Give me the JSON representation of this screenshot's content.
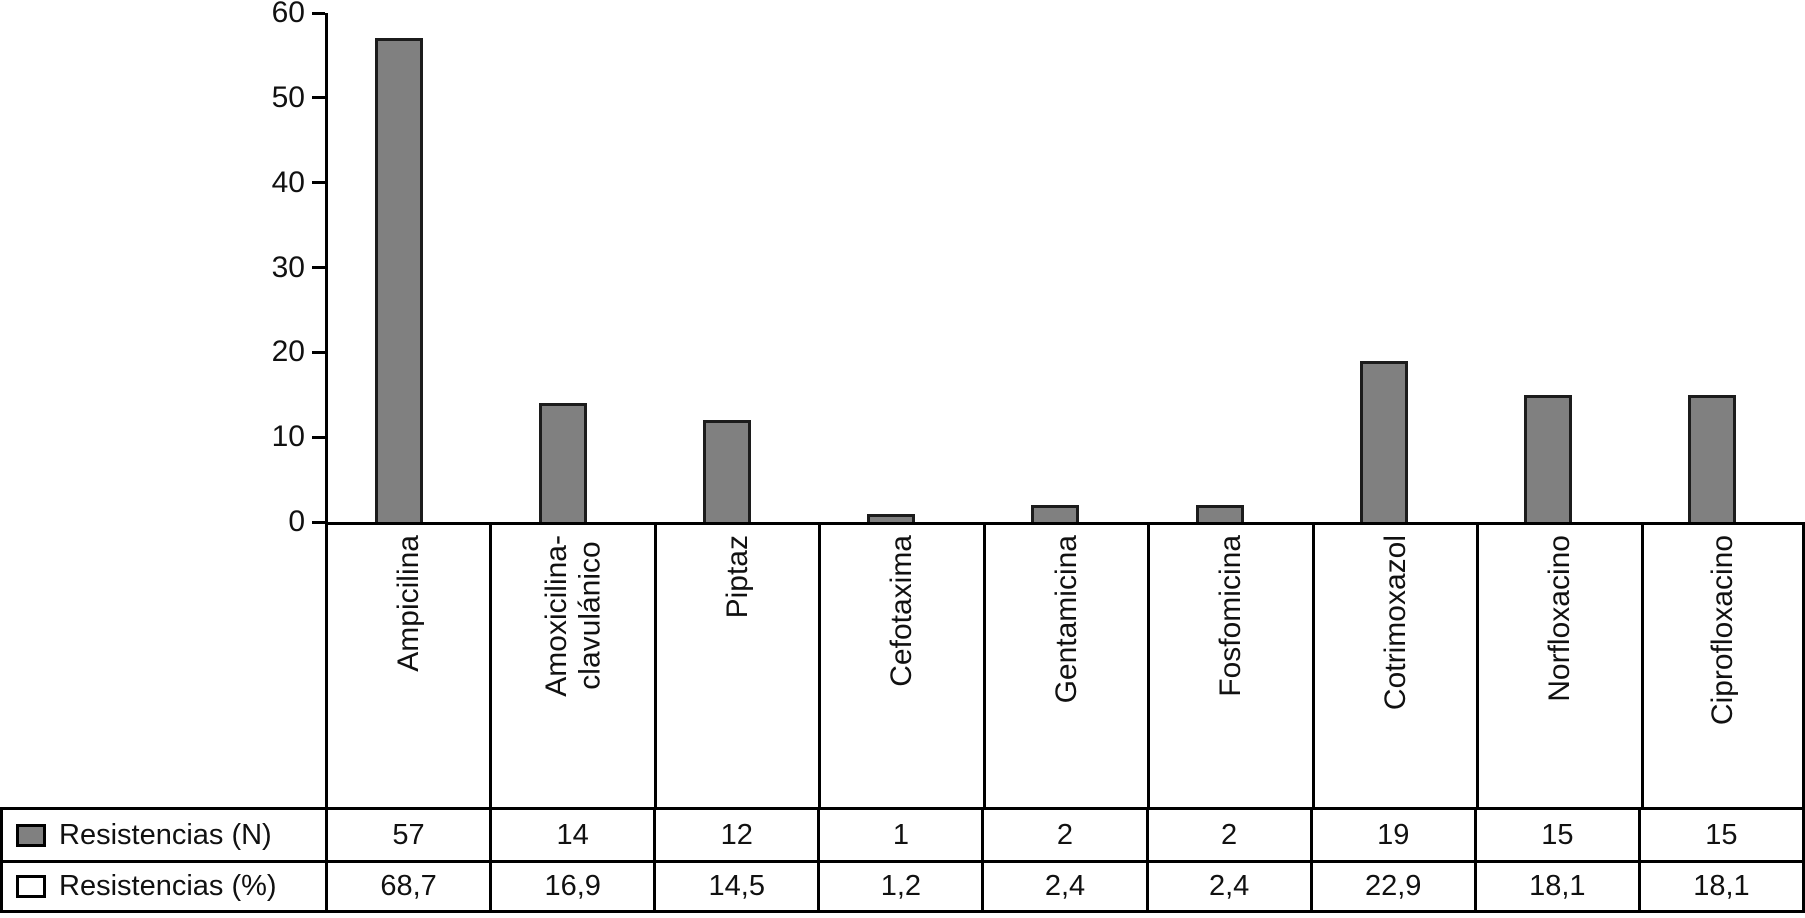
{
  "colors": {
    "bar_fill": "#808080",
    "bar_border": "#1c1c1c",
    "line": "#000000"
  },
  "chart_data": {
    "type": "bar",
    "title": "",
    "xlabel": "",
    "ylabel": "",
    "ylim": [
      0,
      60
    ],
    "yticks": [
      0,
      10,
      20,
      30,
      40,
      50,
      60
    ],
    "grid": false,
    "legend_position": "table-below-chart",
    "categories": [
      "Ampicilina",
      "Amoxicilina-clavulánico",
      "Piptaz",
      "Cefotaxima",
      "Gentamicina",
      "Fosfomicina",
      "Cotrimoxazol",
      "Norfloxacino",
      "Ciprofloxacino"
    ],
    "category_label_lines": [
      [
        "Ampicilina"
      ],
      [
        "Amoxicilina-",
        "clavulánico"
      ],
      [
        "Piptaz"
      ],
      [
        "Cefotaxima"
      ],
      [
        "Gentamicina"
      ],
      [
        "Fosfomicina"
      ],
      [
        "Cotrimoxazol"
      ],
      [
        "Norfloxacino"
      ],
      [
        "Ciprofloxacino"
      ]
    ],
    "series": [
      {
        "name": "Resistencias (N)",
        "plotted_as_bars": true,
        "values": [
          57,
          14,
          12,
          1,
          2,
          2,
          19,
          15,
          15
        ]
      },
      {
        "name": "Resistencias (%)",
        "plotted_as_bars": false,
        "values": [
          68.7,
          16.9,
          14.5,
          1.2,
          2.4,
          2.4,
          22.9,
          18.1,
          18.1
        ]
      }
    ]
  },
  "table": {
    "rows": [
      {
        "swatch": "filled-gray-square",
        "label": "Resistencias (N)",
        "values": [
          "57",
          "14",
          "12",
          "1",
          "2",
          "2",
          "19",
          "15",
          "15"
        ]
      },
      {
        "swatch": "empty-white-square",
        "label": "Resistencias (%)",
        "values": [
          "68,7",
          "16,9",
          "14,5",
          "1,2",
          "2,4",
          "2,4",
          "22,9",
          "18,1",
          "18,1"
        ]
      }
    ]
  }
}
